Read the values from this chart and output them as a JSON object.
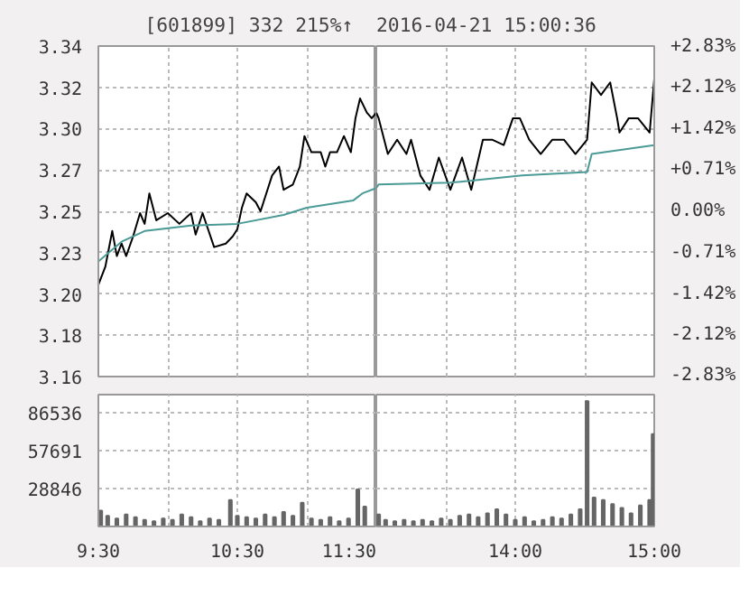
{
  "chart_data": [
    {
      "type": "line",
      "title": "[601899]  332  215%↑",
      "grid": true,
      "tick_labels": "y",
      "xlim": [
        9.5,
        11.5
      ],
      "xticks": [
        {
          "value": 9.5,
          "label": null
        },
        {
          "value": 10,
          "label": null
        },
        {
          "value": 10.5,
          "label": null
        },
        {
          "value": 11,
          "label": null
        },
        {
          "value": 11.5,
          "label": null
        }
      ],
      "ylim": [
        3.1577,
        3.3423
      ],
      "yticks": [
        {
          "value": 3.1577,
          "label": "3.16"
        },
        {
          "value": 3.1808,
          "label": "3.18"
        },
        {
          "value": 3.2038,
          "label": "3.20"
        },
        {
          "value": 3.2269,
          "label": "3.23"
        },
        {
          "value": 3.25,
          "label": "3.25"
        },
        {
          "value": 3.2731,
          "label": "3.27"
        },
        {
          "value": 3.2962,
          "label": "3.30"
        },
        {
          "value": 3.3192,
          "label": "3.32"
        },
        {
          "value": 3.3423,
          "label": "3.34"
        }
      ],
      "series": [
        {
          "color": "#000000",
          "x": [
            9.5,
            9.55,
            9.6,
            9.633,
            9.667,
            9.7,
            9.75,
            9.8,
            9.833,
            9.867,
            9.917,
            10,
            10.083,
            10.167,
            10.2,
            10.25,
            10.333,
            10.417,
            10.467,
            10.5,
            10.533,
            10.567,
            10.633,
            10.667,
            10.75,
            10.8,
            10.833,
            10.9,
            10.95,
            10.983,
            11.033,
            11.1,
            11.133,
            11.167,
            11.217,
            11.267,
            11.317,
            11.35,
            11.383,
            11.433,
            11.467,
            11.5
          ],
          "values": [
            3.209,
            3.219,
            3.239,
            3.225,
            3.232,
            3.225,
            3.236,
            3.249,
            3.243,
            3.26,
            3.245,
            3.249,
            3.243,
            3.249,
            3.237,
            3.249,
            3.23,
            3.232,
            3.236,
            3.24,
            3.252,
            3.26,
            3.255,
            3.25,
            3.27,
            3.275,
            3.262,
            3.265,
            3.275,
            3.292,
            3.283,
            3.283,
            3.275,
            3.283,
            3.283,
            3.292,
            3.283,
            3.302,
            3.313,
            3.305,
            3.302,
            3.305
          ]
        },
        {
          "color": "#4a9a96",
          "x": [
            9.5,
            9.667,
            9.833,
            10.167,
            10.5,
            10.833,
            11,
            11.167,
            11.333,
            11.4,
            11.5
          ],
          "values": [
            3.222,
            3.233,
            3.239,
            3.242,
            3.243,
            3.248,
            3.252,
            3.254,
            3.256,
            3.26,
            3.263
          ]
        }
      ]
    },
    {
      "type": "line",
      "title": "2016-04-21 15:00:36",
      "grid": true,
      "tick_labels": false,
      "xlim": [
        13,
        15
      ],
      "xticks": [
        {
          "value": 13,
          "label": null
        },
        {
          "value": 13.5,
          "label": null
        },
        {
          "value": 14,
          "label": null
        },
        {
          "value": 14.5,
          "label": null
        },
        {
          "value": 15,
          "label": null
        }
      ],
      "ylim": [
        3.1577,
        3.3423
      ],
      "yticks": [
        {
          "value": 3.1577,
          "label": null
        },
        {
          "value": 3.1808,
          "label": null
        },
        {
          "value": 3.2038,
          "label": null
        },
        {
          "value": 3.2269,
          "label": null
        },
        {
          "value": 3.25,
          "label": null
        },
        {
          "value": 3.2731,
          "label": null
        },
        {
          "value": 3.2962,
          "label": null
        },
        {
          "value": 3.3192,
          "label": null
        },
        {
          "value": 3.3423,
          "label": null
        }
      ],
      "y2lim": [
        -2.84,
        2.84
      ],
      "y2ticks": [
        {
          "value": -2.83,
          "label": "-2.83%"
        },
        {
          "value": -2.12,
          "label": "-2.12%"
        },
        {
          "value": -1.42,
          "label": "-1.42%"
        },
        {
          "value": -0.71,
          "label": "-0.71%"
        },
        {
          "value": 0,
          "label": "0.00%"
        },
        {
          "value": 0.71,
          "label": "+0.71%"
        },
        {
          "value": 1.42,
          "label": "+1.42%"
        },
        {
          "value": 2.12,
          "label": "+2.12%"
        },
        {
          "value": 2.83,
          "label": "+2.83%"
        }
      ],
      "series": [
        {
          "color": "#000000",
          "x": [
            13,
            13.017,
            13.083,
            13.15,
            13.217,
            13.25,
            13.317,
            13.383,
            13.45,
            13.533,
            13.617,
            13.683,
            13.767,
            13.833,
            13.917,
            13.983,
            14.033,
            14.1,
            14.183,
            14.267,
            14.35,
            14.433,
            14.517,
            14.55,
            14.617,
            14.683,
            14.733,
            14.75,
            14.817,
            14.883,
            14.967,
            15
          ],
          "values": [
            3.305,
            3.302,
            3.282,
            3.29,
            3.282,
            3.29,
            3.27,
            3.262,
            3.28,
            3.262,
            3.28,
            3.262,
            3.29,
            3.29,
            3.287,
            3.302,
            3.302,
            3.29,
            3.282,
            3.29,
            3.29,
            3.282,
            3.29,
            3.322,
            3.315,
            3.322,
            3.302,
            3.294,
            3.302,
            3.302,
            3.294,
            3.324
          ]
        },
        {
          "color": "#4a9a96",
          "x": [
            13,
            13.017,
            13.533,
            14.05,
            14.517,
            14.55,
            15
          ],
          "values": [
            3.263,
            3.265,
            3.266,
            3.27,
            3.272,
            3.282,
            3.287
          ]
        }
      ]
    },
    {
      "type": "bar",
      "grid": true,
      "color": "#666666",
      "xlim": [
        9.5,
        11.5
      ],
      "xticks": [
        {
          "value": 9.5,
          "label": "9:30"
        },
        {
          "value": 10,
          "label": null
        },
        {
          "value": 10.5,
          "label": "10:30"
        },
        {
          "value": 11,
          "label": null
        },
        {
          "value": 11.5,
          "label": "11:30"
        }
      ],
      "ylim": [
        0,
        100000
      ],
      "yticks": [
        28846,
        57691,
        86536
      ],
      "x": [
        9.517,
        9.567,
        9.633,
        9.7,
        9.767,
        9.833,
        9.9,
        9.967,
        10.033,
        10.1,
        10.167,
        10.233,
        10.3,
        10.367,
        10.45,
        10.5,
        10.567,
        10.633,
        10.7,
        10.767,
        10.833,
        10.9,
        10.967,
        11.033,
        11.1,
        11.167,
        11.233,
        11.3,
        11.367,
        11.417
      ],
      "values": [
        12000,
        8000,
        6000,
        9000,
        7000,
        5000,
        4000,
        6000,
        5000,
        9000,
        7000,
        4000,
        6000,
        5000,
        20000,
        8000,
        7000,
        6000,
        9000,
        7000,
        11000,
        8000,
        18000,
        6000,
        5000,
        7000,
        4000,
        6000,
        28000,
        15000
      ]
    },
    {
      "type": "bar",
      "grid": true,
      "color": "#666666",
      "tick_labels": "x",
      "xlim": [
        13,
        15
      ],
      "xticks": [
        {
          "value": 13,
          "label": null
        },
        {
          "value": 13.5,
          "label": null
        },
        {
          "value": 14,
          "label": "14:00"
        },
        {
          "value": 14.5,
          "label": null
        },
        {
          "value": 15,
          "label": "15:00"
        }
      ],
      "ylim": [
        0,
        100000
      ],
      "yticks": [
        28846,
        57691,
        86536
      ],
      "x": [
        13.017,
        13.067,
        13.133,
        13.2,
        13.267,
        13.333,
        13.4,
        13.467,
        13.533,
        13.6,
        13.667,
        13.733,
        13.8,
        13.867,
        13.933,
        14,
        14.067,
        14.133,
        14.2,
        14.267,
        14.333,
        14.4,
        14.467,
        14.517,
        14.567,
        14.633,
        14.7,
        14.767,
        14.833,
        14.9,
        14.967,
        14.992
      ],
      "values": [
        9000,
        5000,
        4000,
        5000,
        4000,
        5000,
        4000,
        6000,
        5000,
        8000,
        9000,
        7000,
        10000,
        13000,
        9000,
        5000,
        7000,
        4000,
        5000,
        7000,
        6000,
        9000,
        13000,
        95000,
        22000,
        20000,
        17000,
        14000,
        10000,
        16000,
        20000,
        70000
      ]
    }
  ]
}
